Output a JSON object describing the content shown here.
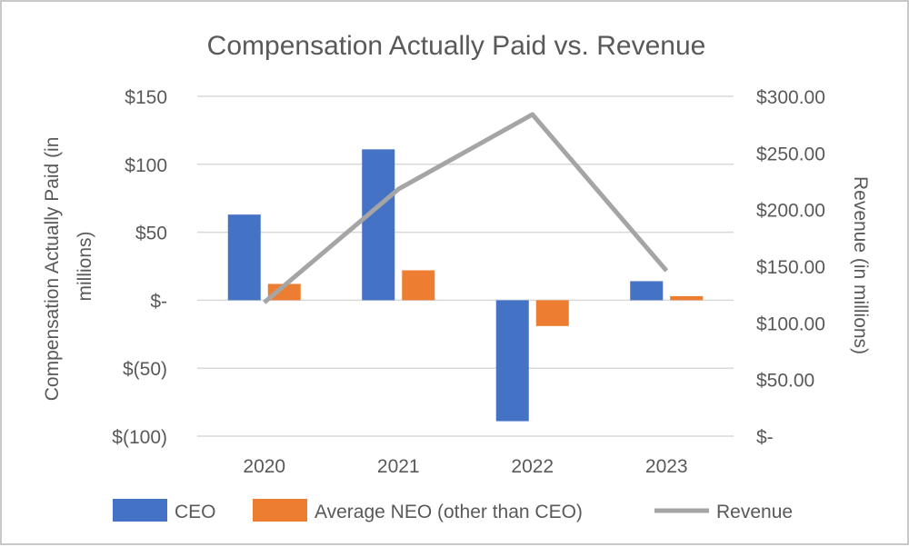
{
  "chart_data": {
    "type": "bar",
    "title": "Compensation Actually Paid vs. Revenue",
    "categories": [
      "2020",
      "2021",
      "2022",
      "2023"
    ],
    "series": [
      {
        "name": "CEO",
        "type": "bar",
        "axis": "left",
        "color": "#4472C4",
        "values": [
          63,
          111,
          -89,
          14
        ]
      },
      {
        "name": "Average NEO (other than CEO)",
        "type": "bar",
        "axis": "left",
        "color": "#ED7D31",
        "values": [
          12,
          22,
          -19,
          3
        ]
      },
      {
        "name": "Revenue",
        "type": "line",
        "axis": "right",
        "color": "#A5A5A5",
        "values": [
          118,
          218,
          284,
          146
        ]
      }
    ],
    "y_left": {
      "label": "Compensation Actually Paid (in millions)",
      "label_lines": [
        "Compensation Actually Paid (in",
        "millions)"
      ],
      "ylim": [
        -100,
        150
      ],
      "ticks": [
        150,
        100,
        50,
        0,
        -50,
        -100
      ],
      "tick_labels": [
        "$150",
        "$100",
        "$50",
        "$-",
        "$(50)",
        "$(100)"
      ]
    },
    "y_right": {
      "label": "Revenue (in millions)",
      "ylim": [
        0,
        300
      ],
      "ticks": [
        300,
        250,
        200,
        150,
        100,
        50,
        0
      ],
      "tick_labels": [
        "$300.00",
        "$250.00",
        "$200.00",
        "$150.00",
        "$100.00",
        "$50.00",
        "$-"
      ]
    },
    "grid": true,
    "legend_position": "bottom",
    "gridline_color": "#D9D9D9"
  }
}
